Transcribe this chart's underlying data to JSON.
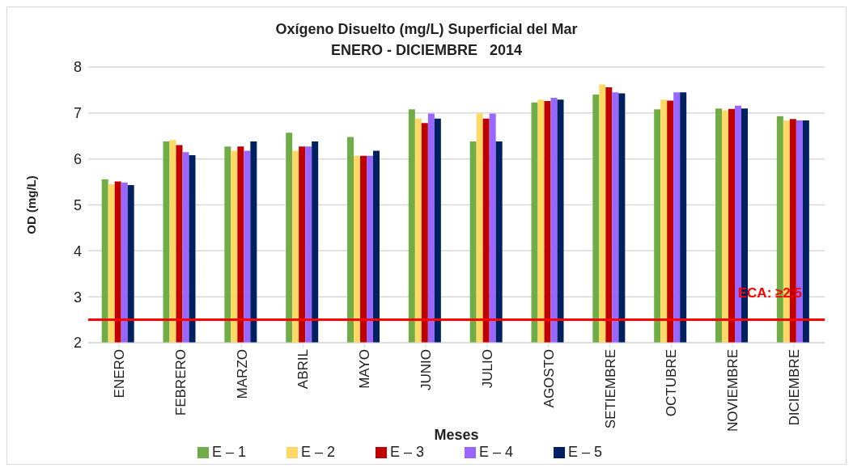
{
  "chart_data": {
    "type": "bar",
    "title": "Oxígeno Disuelto (mg/L) Superficial del Mar",
    "subtitle": "ENERO - DICIEMBRE   2014",
    "xlabel": "Meses",
    "ylabel": "OD (mg/L)",
    "categories": [
      "ENERO",
      "FEBRERO",
      "MARZO",
      "ABRIL",
      "MAYO",
      "JUNIO",
      "JULIO",
      "AGOSTO",
      "SETIEMBRE",
      "OCTUBRE",
      "NOVIEMBRE",
      "DICIEMBRE"
    ],
    "series": [
      {
        "name": "E – 1",
        "color": "#70ad47",
        "values": [
          5.56,
          6.38,
          6.27,
          6.57,
          6.48,
          7.08,
          6.38,
          7.23,
          7.4,
          7.08,
          7.1,
          6.93
        ]
      },
      {
        "name": "E – 2",
        "color": "#ffd966",
        "values": [
          5.45,
          6.41,
          6.18,
          6.18,
          6.07,
          6.88,
          6.99,
          7.29,
          7.62,
          7.29,
          7.06,
          6.84
        ]
      },
      {
        "name": "E – 3",
        "color": "#c00000",
        "values": [
          5.51,
          6.3,
          6.27,
          6.27,
          6.07,
          6.78,
          6.88,
          7.26,
          7.56,
          7.27,
          7.09,
          6.87
        ]
      },
      {
        "name": "E – 4",
        "color": "#9966ff",
        "values": [
          5.49,
          6.15,
          6.18,
          6.27,
          6.07,
          6.99,
          6.99,
          7.33,
          7.45,
          7.45,
          7.16,
          6.84
        ]
      },
      {
        "name": "E – 5",
        "color": "#002060",
        "values": [
          5.43,
          6.08,
          6.38,
          6.38,
          6.18,
          6.88,
          6.38,
          7.29,
          7.43,
          7.45,
          7.1,
          6.84
        ]
      }
    ],
    "ylim": [
      2,
      8
    ],
    "yticks": [
      2,
      3,
      4,
      5,
      6,
      7,
      8
    ],
    "grid": "y",
    "legend": "bottom",
    "ref_lines": [
      {
        "axis": "y",
        "value": 2.5,
        "label": "ECA: ≥2,5",
        "color": "#ff0000"
      }
    ]
  }
}
